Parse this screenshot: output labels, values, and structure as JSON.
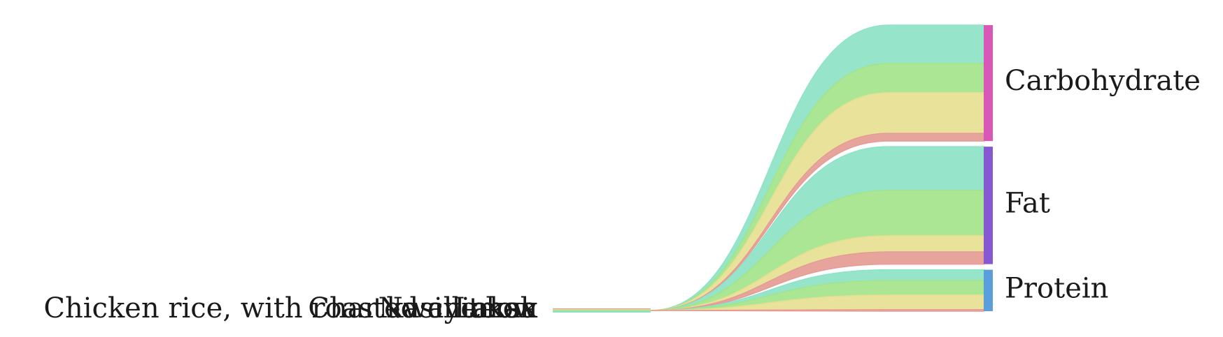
{
  "chart_data": {
    "type": "sankey",
    "title": "",
    "sources": [
      {
        "name": "Chicken rice, with roasted chicken",
        "color": "#8de3c6"
      },
      {
        "name": "Nasi lemak",
        "color": "#a3e48a"
      },
      {
        "name": "Char kway teow",
        "color": "#e6df93"
      },
      {
        "name": "Laksa",
        "color": "#e59c95"
      }
    ],
    "targets": [
      {
        "name": "Carbohydrate",
        "color": "#d957b7"
      },
      {
        "name": "Fat",
        "color": "#8659d1"
      },
      {
        "name": "Protein",
        "color": "#5a9fdb"
      }
    ],
    "links": [
      {
        "source": "Chicken rice, with roasted chicken",
        "target": "Carbohydrate",
        "value": 50
      },
      {
        "source": "Nasi lemak",
        "target": "Carbohydrate",
        "value": 38
      },
      {
        "source": "Char kway teow",
        "target": "Carbohydrate",
        "value": 53
      },
      {
        "source": "Laksa",
        "target": "Carbohydrate",
        "value": 10
      },
      {
        "source": "Chicken rice, with roasted chicken",
        "target": "Fat",
        "value": 57
      },
      {
        "source": "Nasi lemak",
        "target": "Fat",
        "value": 59
      },
      {
        "source": "Char kway teow",
        "target": "Fat",
        "value": 21
      },
      {
        "source": "Laksa",
        "target": "Fat",
        "value": 16
      },
      {
        "source": "Chicken rice, with roasted chicken",
        "target": "Protein",
        "value": 14
      },
      {
        "source": "Nasi lemak",
        "target": "Protein",
        "value": 19
      },
      {
        "source": "Char kway teow",
        "target": "Protein",
        "value": 19
      },
      {
        "source": "Laksa",
        "target": "Protein",
        "value": 2
      }
    ]
  }
}
